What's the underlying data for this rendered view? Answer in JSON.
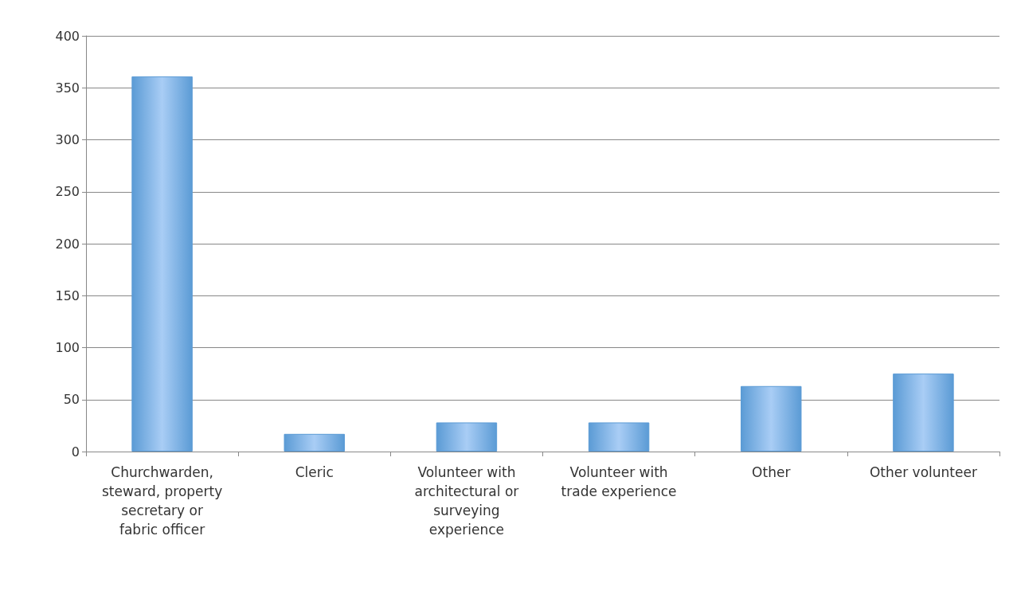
{
  "chart_data": {
    "type": "bar",
    "categories": [
      "Churchwarden, steward, property secretary or fabric officer",
      "Cleric",
      "Volunteer with architectural or surveying experience",
      "Volunteer with trade experience",
      "Other",
      "Other volunteer"
    ],
    "values": [
      361,
      17,
      28,
      28,
      63,
      75
    ],
    "color": "#5b9bd5",
    "ylim": [
      0,
      400
    ],
    "yticks": [
      0,
      50,
      100,
      150,
      200,
      250,
      300,
      350,
      400
    ],
    "grid": "y"
  }
}
